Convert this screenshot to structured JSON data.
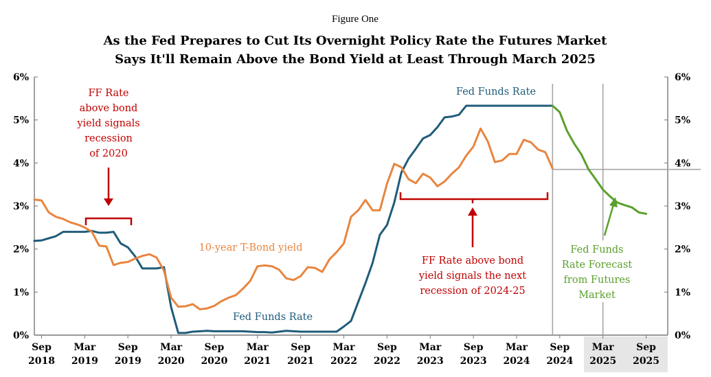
{
  "figure_label": "Figure One",
  "title_lines": [
    "As the Fed Prepares to Cut Its Overnight Policy Rate the Futures Market",
    "Says It'll Remain Above the Bond Yield at Least Through March 2025"
  ],
  "chart_data": {
    "type": "line",
    "title": "As the Fed Prepares to Cut Its Overnight Policy Rate the Futures Market Says It'll Remain Above the Bond Yield at Least Through March 2025",
    "ylim": [
      0,
      6
    ],
    "xlim": [
      "2018-08",
      "2025-12"
    ],
    "grid": false,
    "y_ticks": [
      {
        "value": 0,
        "label": "0%"
      },
      {
        "value": 1,
        "label": "1%"
      },
      {
        "value": 2,
        "label": "2%"
      },
      {
        "value": 3,
        "label": "3%"
      },
      {
        "value": 4,
        "label": "4%"
      },
      {
        "value": 5,
        "label": "5%"
      },
      {
        "value": 6,
        "label": "6%"
      }
    ],
    "x_ticks": [
      {
        "date": "2018-09",
        "line1": "Sep",
        "line2": "2018"
      },
      {
        "date": "2019-03",
        "line1": "Mar",
        "line2": "2019"
      },
      {
        "date": "2019-09",
        "line1": "Sep",
        "line2": "2019"
      },
      {
        "date": "2020-03",
        "line1": "Mar",
        "line2": "2020"
      },
      {
        "date": "2020-09",
        "line1": "Sep",
        "line2": "2020"
      },
      {
        "date": "2021-03",
        "line1": "Mar",
        "line2": "2021"
      },
      {
        "date": "2021-09",
        "line1": "Sep",
        "line2": "2021"
      },
      {
        "date": "2022-03",
        "line1": "Mar",
        "line2": "2022"
      },
      {
        "date": "2022-09",
        "line1": "Sep",
        "line2": "2022"
      },
      {
        "date": "2023-03",
        "line1": "Mar",
        "line2": "2023"
      },
      {
        "date": "2023-09",
        "line1": "Sep",
        "line2": "2023"
      },
      {
        "date": "2024-03",
        "line1": "Mar",
        "line2": "2024"
      },
      {
        "date": "2024-09",
        "line1": "Sep",
        "line2": "2024"
      },
      {
        "date": "2025-03",
        "line1": "Mar",
        "line2": "2025",
        "shaded": true
      },
      {
        "date": "2025-09",
        "line1": "Sep",
        "line2": "2025",
        "shaded": true
      }
    ],
    "forecast_start": "2024-08",
    "reference_date": "2025-03",
    "reference_value": 3.85,
    "series": [
      {
        "name": "Fed Funds Rate",
        "color": "#1f5b7a",
        "points": [
          [
            "2018-08",
            2.19
          ],
          [
            "2018-09",
            2.2
          ],
          [
            "2018-10",
            2.25
          ],
          [
            "2018-11",
            2.3
          ],
          [
            "2018-12",
            2.4
          ],
          [
            "2019-01",
            2.4
          ],
          [
            "2019-02",
            2.4
          ],
          [
            "2019-03",
            2.4
          ],
          [
            "2019-04",
            2.42
          ],
          [
            "2019-05",
            2.38
          ],
          [
            "2019-06",
            2.38
          ],
          [
            "2019-07",
            2.4
          ],
          [
            "2019-08",
            2.13
          ],
          [
            "2019-09",
            2.04
          ],
          [
            "2019-10",
            1.83
          ],
          [
            "2019-11",
            1.55
          ],
          [
            "2019-12",
            1.55
          ],
          [
            "2020-01",
            1.55
          ],
          [
            "2020-02",
            1.58
          ],
          [
            "2020-03",
            0.65
          ],
          [
            "2020-04",
            0.05
          ],
          [
            "2020-05",
            0.05
          ],
          [
            "2020-06",
            0.08
          ],
          [
            "2020-07",
            0.09
          ],
          [
            "2020-08",
            0.1
          ],
          [
            "2020-09",
            0.09
          ],
          [
            "2020-10",
            0.09
          ],
          [
            "2020-11",
            0.09
          ],
          [
            "2020-12",
            0.09
          ],
          [
            "2021-01",
            0.09
          ],
          [
            "2021-02",
            0.08
          ],
          [
            "2021-03",
            0.07
          ],
          [
            "2021-04",
            0.07
          ],
          [
            "2021-05",
            0.06
          ],
          [
            "2021-06",
            0.08
          ],
          [
            "2021-07",
            0.1
          ],
          [
            "2021-08",
            0.09
          ],
          [
            "2021-09",
            0.08
          ],
          [
            "2021-10",
            0.08
          ],
          [
            "2021-11",
            0.08
          ],
          [
            "2021-12",
            0.08
          ],
          [
            "2022-01",
            0.08
          ],
          [
            "2022-02",
            0.08
          ],
          [
            "2022-03",
            0.2
          ],
          [
            "2022-04",
            0.33
          ],
          [
            "2022-05",
            0.77
          ],
          [
            "2022-06",
            1.21
          ],
          [
            "2022-07",
            1.68
          ],
          [
            "2022-08",
            2.33
          ],
          [
            "2022-09",
            2.56
          ],
          [
            "2022-10",
            3.08
          ],
          [
            "2022-11",
            3.78
          ],
          [
            "2022-12",
            4.1
          ],
          [
            "2023-01",
            4.33
          ],
          [
            "2023-02",
            4.57
          ],
          [
            "2023-03",
            4.65
          ],
          [
            "2023-04",
            4.83
          ],
          [
            "2023-05",
            5.06
          ],
          [
            "2023-06",
            5.08
          ],
          [
            "2023-07",
            5.12
          ],
          [
            "2023-08",
            5.33
          ],
          [
            "2023-09",
            5.33
          ],
          [
            "2023-10",
            5.33
          ],
          [
            "2023-11",
            5.33
          ],
          [
            "2023-12",
            5.33
          ],
          [
            "2024-01",
            5.33
          ],
          [
            "2024-02",
            5.33
          ],
          [
            "2024-03",
            5.33
          ],
          [
            "2024-04",
            5.33
          ],
          [
            "2024-05",
            5.33
          ],
          [
            "2024-06",
            5.33
          ],
          [
            "2024-07",
            5.33
          ],
          [
            "2024-08",
            5.33
          ]
        ]
      },
      {
        "name": "10-year T-Bond yield",
        "color": "#e8853f",
        "points": [
          [
            "2018-08",
            3.15
          ],
          [
            "2018-09",
            3.13
          ],
          [
            "2018-10",
            2.85
          ],
          [
            "2018-11",
            2.75
          ],
          [
            "2018-12",
            2.7
          ],
          [
            "2019-01",
            2.62
          ],
          [
            "2019-02",
            2.57
          ],
          [
            "2019-03",
            2.5
          ],
          [
            "2019-04",
            2.4
          ],
          [
            "2019-05",
            2.08
          ],
          [
            "2019-06",
            2.06
          ],
          [
            "2019-07",
            1.63
          ],
          [
            "2019-08",
            1.68
          ],
          [
            "2019-09",
            1.7
          ],
          [
            "2019-10",
            1.78
          ],
          [
            "2019-11",
            1.84
          ],
          [
            "2019-12",
            1.88
          ],
          [
            "2020-01",
            1.8
          ],
          [
            "2020-02",
            1.5
          ],
          [
            "2020-03",
            0.87
          ],
          [
            "2020-04",
            0.66
          ],
          [
            "2020-05",
            0.67
          ],
          [
            "2020-06",
            0.72
          ],
          [
            "2020-07",
            0.6
          ],
          [
            "2020-08",
            0.62
          ],
          [
            "2020-09",
            0.68
          ],
          [
            "2020-10",
            0.79
          ],
          [
            "2020-11",
            0.87
          ],
          [
            "2020-12",
            0.93
          ],
          [
            "2021-01",
            1.08
          ],
          [
            "2021-02",
            1.26
          ],
          [
            "2021-03",
            1.6
          ],
          [
            "2021-04",
            1.62
          ],
          [
            "2021-05",
            1.6
          ],
          [
            "2021-06",
            1.52
          ],
          [
            "2021-07",
            1.32
          ],
          [
            "2021-08",
            1.28
          ],
          [
            "2021-09",
            1.37
          ],
          [
            "2021-10",
            1.58
          ],
          [
            "2021-11",
            1.56
          ],
          [
            "2021-12",
            1.47
          ],
          [
            "2022-01",
            1.76
          ],
          [
            "2022-02",
            1.93
          ],
          [
            "2022-03",
            2.13
          ],
          [
            "2022-04",
            2.75
          ],
          [
            "2022-05",
            2.9
          ],
          [
            "2022-06",
            3.14
          ],
          [
            "2022-07",
            2.9
          ],
          [
            "2022-08",
            2.9
          ],
          [
            "2022-09",
            3.52
          ],
          [
            "2022-10",
            3.98
          ],
          [
            "2022-11",
            3.9
          ],
          [
            "2022-12",
            3.62
          ],
          [
            "2023-01",
            3.53
          ],
          [
            "2023-02",
            3.75
          ],
          [
            "2023-03",
            3.66
          ],
          [
            "2023-04",
            3.46
          ],
          [
            "2023-05",
            3.57
          ],
          [
            "2023-06",
            3.75
          ],
          [
            "2023-07",
            3.9
          ],
          [
            "2023-08",
            4.17
          ],
          [
            "2023-09",
            4.38
          ],
          [
            "2023-10",
            4.8
          ],
          [
            "2023-11",
            4.5
          ],
          [
            "2023-12",
            4.02
          ],
          [
            "2024-01",
            4.06
          ],
          [
            "2024-02",
            4.21
          ],
          [
            "2024-03",
            4.21
          ],
          [
            "2024-04",
            4.54
          ],
          [
            "2024-05",
            4.48
          ],
          [
            "2024-06",
            4.31
          ],
          [
            "2024-07",
            4.25
          ],
          [
            "2024-08",
            3.87
          ]
        ]
      },
      {
        "name": "Fed Funds Rate Forecast from Futures Market",
        "color": "#5aa02c",
        "points": [
          [
            "2024-08",
            5.33
          ],
          [
            "2024-09",
            5.18
          ],
          [
            "2024-10",
            4.75
          ],
          [
            "2024-11",
            4.45
          ],
          [
            "2024-12",
            4.2
          ],
          [
            "2025-01",
            3.85
          ],
          [
            "2025-02",
            3.62
          ],
          [
            "2025-03",
            3.38
          ],
          [
            "2025-04",
            3.22
          ],
          [
            "2025-05",
            3.08
          ],
          [
            "2025-06",
            3.02
          ],
          [
            "2025-07",
            2.97
          ],
          [
            "2025-08",
            2.85
          ],
          [
            "2025-09",
            2.82
          ]
        ]
      }
    ],
    "annotations": {
      "ff_label_top": "Fed Funds Rate",
      "ff_label_bottom": "Fed Funds Rate",
      "tbond_label": "10-year T-Bond yield",
      "left_note": [
        "FF Rate",
        "above bond",
        "yield signals",
        "recession",
        "of 2020"
      ],
      "right_note": [
        "FF Rate above bond",
        "yield signals the next",
        "recession of 2024-25"
      ],
      "forecast_note": [
        "Fed Funds",
        "Rate Forecast",
        "from Futures",
        "Market"
      ],
      "note_color": "#c00000",
      "forecast_color": "#5aa02c"
    }
  }
}
